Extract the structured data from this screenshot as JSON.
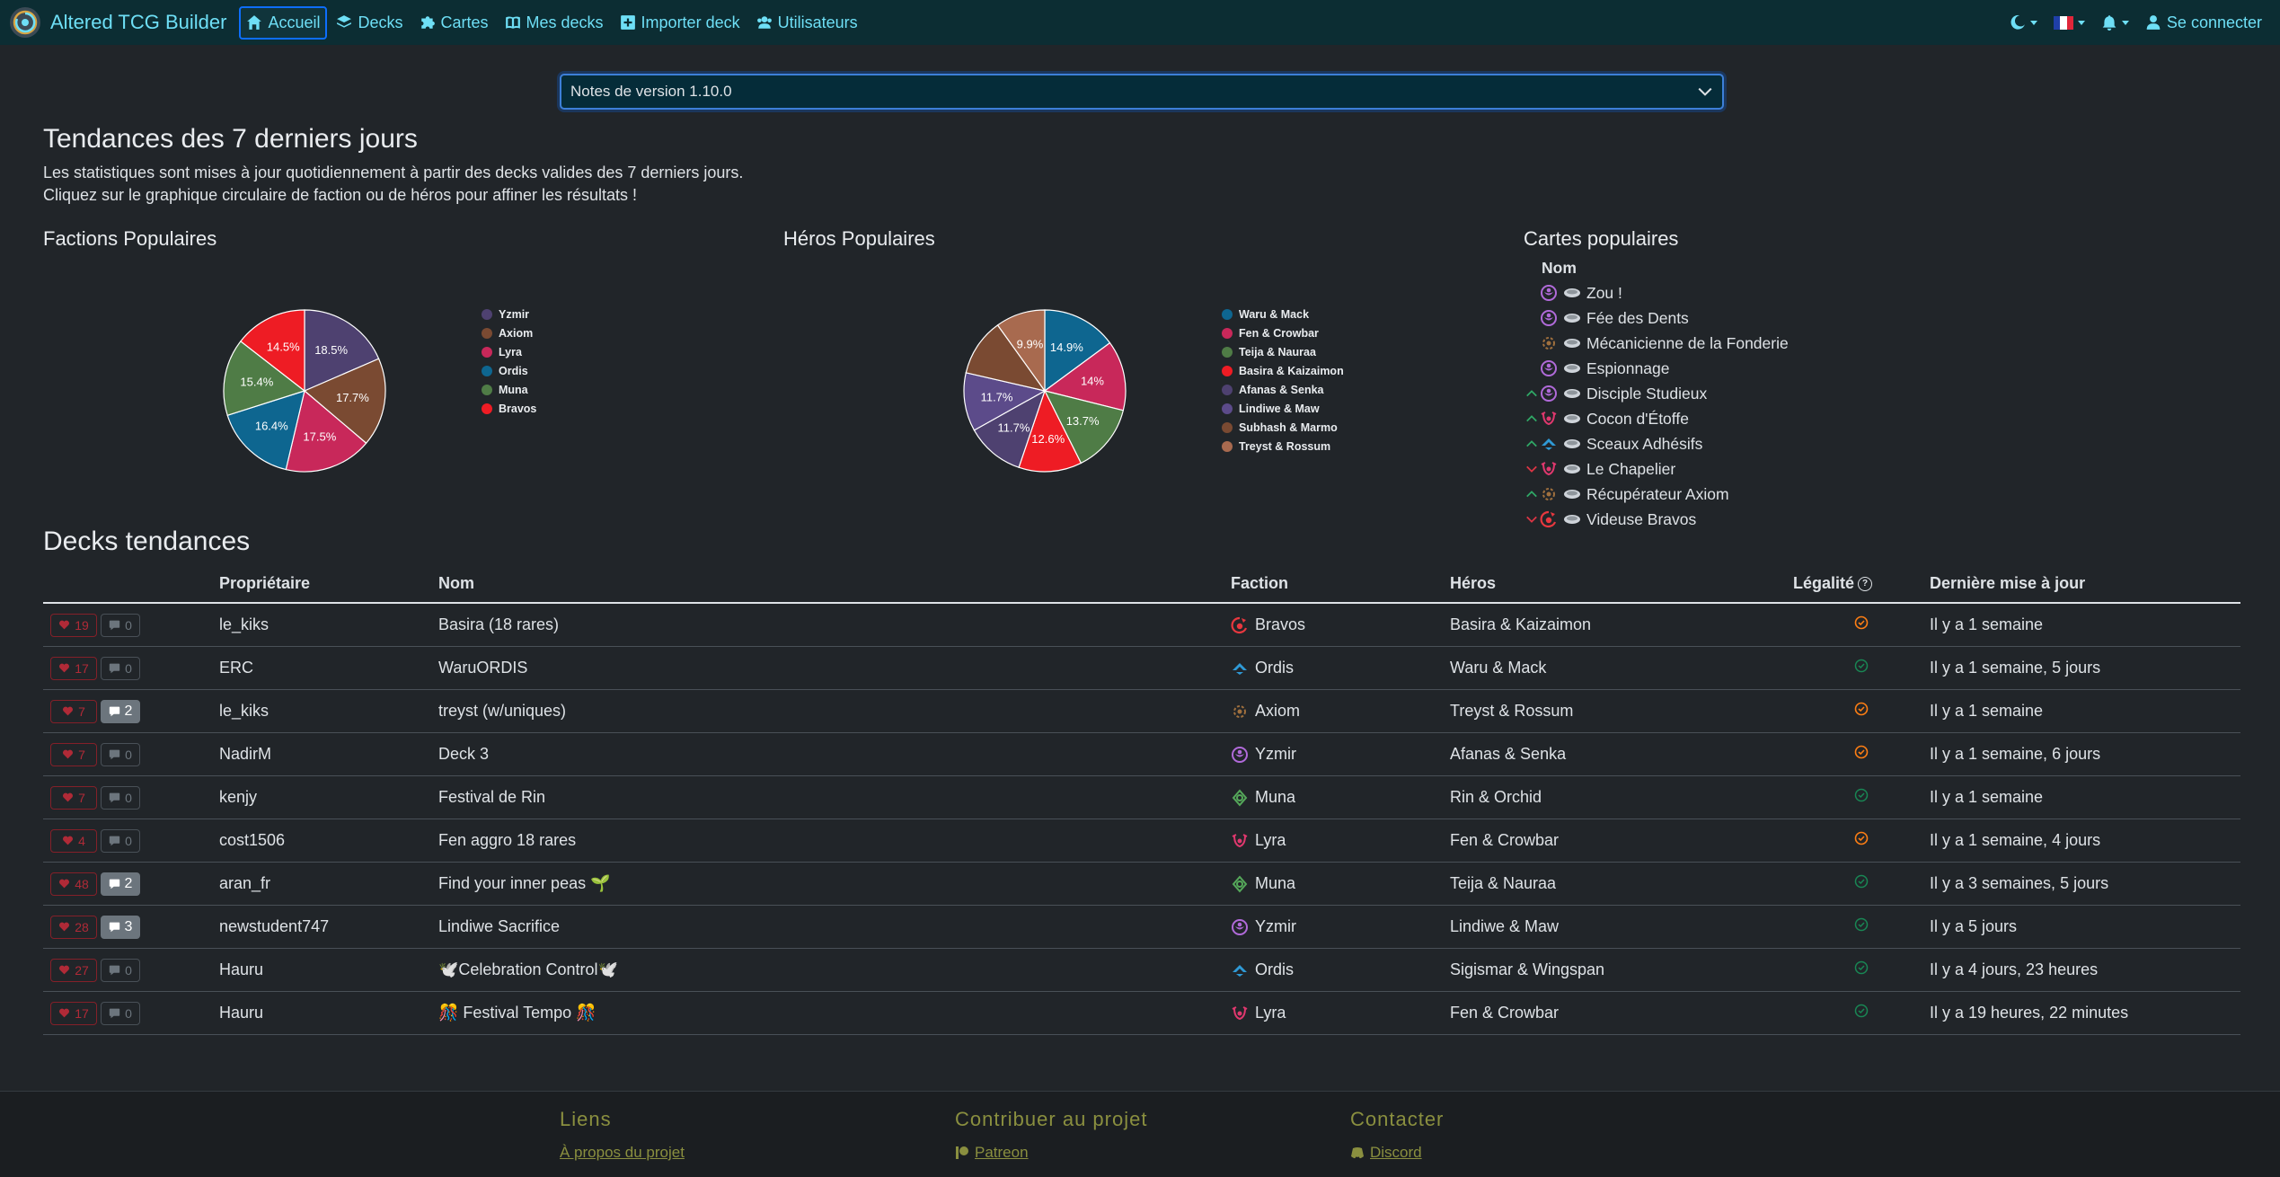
{
  "navbar": {
    "brand": "Altered TCG Builder",
    "items": [
      {
        "label": "Accueil",
        "icon": "home-icon"
      },
      {
        "label": "Decks",
        "icon": "layers-icon"
      },
      {
        "label": "Cartes",
        "icon": "puzzle-icon"
      },
      {
        "label": "Mes decks",
        "icon": "book-icon"
      },
      {
        "label": "Importer deck",
        "icon": "plus-square-icon"
      },
      {
        "label": "Utilisateurs",
        "icon": "users-icon"
      }
    ],
    "login": "Se connecter"
  },
  "version_select": {
    "value": "Notes de version 1.10.0"
  },
  "trends": {
    "title": "Tendances des 7 derniers jours",
    "line1": "Les statistiques sont mises à jour quotidiennement à partir des decks valides des 7 derniers jours.",
    "line2": "Cliquez sur le graphique circulaire de faction ou de héros pour affiner les résultats !"
  },
  "factions_title": "Factions Populaires",
  "heroes_title": "Héros Populaires",
  "cards_title": "Cartes populaires",
  "chart_data": [
    {
      "type": "pie",
      "title": "Factions Populaires",
      "labels": [
        "Yzmir",
        "Axiom",
        "Lyra",
        "Ordis",
        "Muna",
        "Bravos"
      ],
      "values": [
        18.5,
        17.7,
        17.5,
        16.4,
        15.4,
        14.5
      ],
      "value_labels": [
        "18.5%",
        "17.7%",
        "17.5%",
        "16.4%",
        "15.4%",
        "14.5%"
      ],
      "colors": [
        "#4e4170",
        "#7a4a32",
        "#c8285a",
        "#0e6690",
        "#4f7c46",
        "#ee1c24"
      ]
    },
    {
      "type": "pie",
      "title": "Héros Populaires",
      "labels": [
        "Waru & Mack",
        "Fen & Crowbar",
        "Teija & Nauraa",
        "Basira & Kaizaimon",
        "Afanas & Senka",
        "Lindiwe & Maw",
        "Subhash & Marmo",
        "Treyst & Rossum"
      ],
      "values": [
        14.9,
        14.0,
        13.7,
        12.6,
        11.7,
        11.7,
        11.5,
        9.9
      ],
      "value_labels": [
        "14.9%",
        "14%",
        "13.7%",
        "12.6%",
        "11.7%",
        "11.7%",
        "",
        "9.9%"
      ],
      "colors": [
        "#0e6690",
        "#c8285a",
        "#4f7c46",
        "#ee1c24",
        "#4e4170",
        "#5c4b8a",
        "#7a4a32",
        "#a86a4f"
      ]
    }
  ],
  "popular_cards": {
    "header": "Nom",
    "items": [
      {
        "name": "Zou !",
        "faction": "Yzmir",
        "trend": ""
      },
      {
        "name": "Fée des Dents",
        "faction": "Yzmir",
        "trend": ""
      },
      {
        "name": "Mécanicienne de la Fonderie",
        "faction": "Axiom",
        "trend": ""
      },
      {
        "name": "Espionnage",
        "faction": "Yzmir",
        "trend": ""
      },
      {
        "name": "Disciple Studieux",
        "faction": "Yzmir",
        "trend": "up"
      },
      {
        "name": "Cocon d'Étoffe",
        "faction": "Lyra",
        "trend": "up"
      },
      {
        "name": "Sceaux Adhésifs",
        "faction": "Ordis",
        "trend": "up"
      },
      {
        "name": "Le Chapelier",
        "faction": "Lyra",
        "trend": "down"
      },
      {
        "name": "Récupérateur Axiom",
        "faction": "Axiom",
        "trend": "up"
      },
      {
        "name": "Videuse Bravos",
        "faction": "Bravos",
        "trend": "down"
      }
    ]
  },
  "decks": {
    "title": "Decks tendances",
    "headers": {
      "owner": "Propriétaire",
      "name": "Nom",
      "faction": "Faction",
      "hero": "Héros",
      "legality": "Légalité",
      "updated": "Dernière mise à jour"
    },
    "rows": [
      {
        "likes": "19",
        "comments": "0",
        "owner": "le_kiks",
        "name": "Basira (18 rares)",
        "faction": "Bravos",
        "hero": "Basira & Kaizaimon",
        "legality": "warning",
        "updated": "Il y a 1 semaine"
      },
      {
        "likes": "17",
        "comments": "0",
        "owner": "ERC",
        "name": "WaruORDIS",
        "faction": "Ordis",
        "hero": "Waru & Mack",
        "legality": "valid",
        "updated": "Il y a 1 semaine, 5 jours"
      },
      {
        "likes": "7",
        "comments": "2",
        "owner": "le_kiks",
        "name": "treyst (w/uniques)",
        "faction": "Axiom",
        "hero": "Treyst & Rossum",
        "legality": "warning",
        "updated": "Il y a 1 semaine"
      },
      {
        "likes": "7",
        "comments": "0",
        "owner": "NadirM",
        "name": "Deck 3",
        "faction": "Yzmir",
        "hero": "Afanas & Senka",
        "legality": "warning",
        "updated": "Il y a 1 semaine, 6 jours"
      },
      {
        "likes": "7",
        "comments": "0",
        "owner": "kenjy",
        "name": "Festival de Rin",
        "faction": "Muna",
        "hero": "Rin & Orchid",
        "legality": "valid",
        "updated": "Il y a 1 semaine"
      },
      {
        "likes": "4",
        "comments": "0",
        "owner": "cost1506",
        "name": "Fen aggro 18 rares",
        "faction": "Lyra",
        "hero": "Fen & Crowbar",
        "legality": "warning",
        "updated": "Il y a 1 semaine, 4 jours"
      },
      {
        "likes": "48",
        "comments": "2",
        "owner": "aran_fr",
        "name": "Find your inner peas 🌱",
        "faction": "Muna",
        "hero": "Teija & Nauraa",
        "legality": "valid",
        "updated": "Il y a 3 semaines, 5 jours"
      },
      {
        "likes": "28",
        "comments": "3",
        "owner": "newstudent747",
        "name": "Lindiwe Sacrifice",
        "faction": "Yzmir",
        "hero": "Lindiwe & Maw",
        "legality": "valid",
        "updated": "Il y a 5 jours"
      },
      {
        "likes": "27",
        "comments": "0",
        "owner": "Hauru",
        "name": "🕊️Celebration Control🕊️",
        "faction": "Ordis",
        "hero": "Sigismar & Wingspan",
        "legality": "valid",
        "updated": "Il y a 4 jours, 23 heures"
      },
      {
        "likes": "17",
        "comments": "0",
        "owner": "Hauru",
        "name": "🎊 Festival Tempo 🎊",
        "faction": "Lyra",
        "hero": "Fen & Crowbar",
        "legality": "valid",
        "updated": "Il y a 19 heures, 22 minutes"
      }
    ]
  },
  "footer": {
    "links_title": "Liens",
    "link1": "À propos du projet",
    "contribute_title": "Contribuer au projet",
    "contribute1": "Patreon",
    "contact_title": "Contacter",
    "contact1": "Discord"
  },
  "colors": {
    "accent": "#6edff6",
    "navbar": "#0c2d33",
    "background": "#212529",
    "valid": "#198754",
    "warning": "#fd7e14",
    "danger": "#b02a37"
  }
}
